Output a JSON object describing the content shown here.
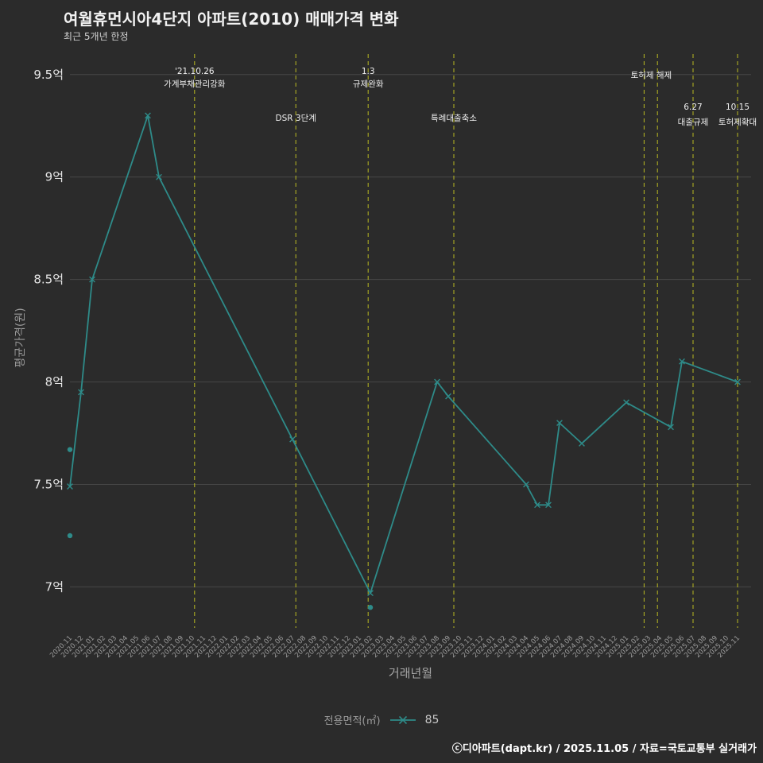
{
  "header": {
    "title": "여월휴먼시아4단지 아파트(2010) 매매가격 변화",
    "subtitle": "최근 5개년 한정"
  },
  "footer": {
    "credit": "ⓒ디아파트(dapt.kr) / 2025.11.05 / 자료=국토교통부 실거래가"
  },
  "legend": {
    "label": "전용면적(㎡)",
    "series_name": "85"
  },
  "colors": {
    "background": "#2b2b2b",
    "series": "#2e8b89",
    "event": "#b9ba22",
    "grid": "#474747",
    "tick_text": "#e6e6e6",
    "muted_text": "#9f9f9f",
    "annotation_text": "#f0f0f0"
  },
  "chart_data": {
    "type": "line",
    "title": "여월휴먼시아4단지 아파트(2010) 매매가격 변화",
    "subtitle": "최근 5개년 한정",
    "xlabel": "거래년월",
    "ylabel": "평균가격(원)",
    "unit": "억",
    "ylim": [
      6.8,
      9.6
    ],
    "grid": "horizontal",
    "legend_position": "bottom",
    "yticks": [
      {
        "value": 9.5,
        "label": "9.5억"
      },
      {
        "value": 9.0,
        "label": "9억"
      },
      {
        "value": 8.5,
        "label": "8.5억"
      },
      {
        "value": 8.0,
        "label": "8억"
      },
      {
        "value": 7.5,
        "label": "7.5억"
      },
      {
        "value": 7.0,
        "label": "7억"
      }
    ],
    "categories": [
      "2020.11",
      "2020.12",
      "2021.01",
      "2021.02",
      "2021.03",
      "2021.04",
      "2021.05",
      "2021.06",
      "2021.07",
      "2021.08",
      "2021.09",
      "2021.10",
      "2021.11",
      "2021.12",
      "2022.01",
      "2022.02",
      "2022.03",
      "2022.04",
      "2022.05",
      "2022.06",
      "2022.07",
      "2022.08",
      "2022.09",
      "2022.10",
      "2022.11",
      "2022.12",
      "2023.01",
      "2023.02",
      "2023.03",
      "2023.04",
      "2023.05",
      "2023.06",
      "2023.07",
      "2023.08",
      "2023.09",
      "2023.10",
      "2023.11",
      "2023.12",
      "2024.01",
      "2024.02",
      "2024.03",
      "2024.04",
      "2024.05",
      "2024.06",
      "2024.07",
      "2024.08",
      "2024.09",
      "2024.10",
      "2024.11",
      "2024.12",
      "2025.01",
      "2025.02",
      "2025.03",
      "2025.04",
      "2025.05",
      "2025.06",
      "2025.07",
      "2025.08",
      "2025.09",
      "2025.10",
      "2025.11"
    ],
    "series": [
      {
        "name": "85",
        "points": [
          {
            "month": "2020.11",
            "value": 7.49
          },
          {
            "month": "2020.12",
            "value": 7.95
          },
          {
            "month": "2021.01",
            "value": 8.5
          },
          {
            "month": "2021.06",
            "value": 9.3
          },
          {
            "month": "2021.07",
            "value": 9.0
          },
          {
            "month": "2022.07",
            "value": 7.72
          },
          {
            "month": "2023.02",
            "value": 6.97
          },
          {
            "month": "2023.08",
            "value": 8.0
          },
          {
            "month": "2023.09",
            "value": 7.93
          },
          {
            "month": "2024.04",
            "value": 7.5
          },
          {
            "month": "2024.05",
            "value": 7.4
          },
          {
            "month": "2024.06",
            "value": 7.4
          },
          {
            "month": "2024.07",
            "value": 7.8
          },
          {
            "month": "2024.09",
            "value": 7.7
          },
          {
            "month": "2025.01",
            "value": 7.9
          },
          {
            "month": "2025.05",
            "value": 7.78
          },
          {
            "month": "2025.06",
            "value": 8.1
          },
          {
            "month": "2025.11",
            "value": 8.0
          }
        ]
      }
    ],
    "scatter_points": [
      {
        "month": "2020.11",
        "value": 7.67
      },
      {
        "month": "2020.11",
        "value": 7.25
      },
      {
        "month": "2023.02",
        "value": 6.9
      }
    ],
    "events": [
      {
        "month_index": 11.2,
        "labels": [
          {
            "text": "'21.10.26",
            "y": 93
          },
          {
            "text": "가계부채관리강화",
            "y": 109
          }
        ]
      },
      {
        "month_index": 20.3,
        "labels": [
          {
            "text": "DSR 3단계",
            "y": 152
          }
        ]
      },
      {
        "month_index": 26.8,
        "labels": [
          {
            "text": "1.3",
            "y": 93
          },
          {
            "text": "규제완화",
            "y": 109
          }
        ]
      },
      {
        "month_index": 34.5,
        "labels": [
          {
            "text": "특례대출축소",
            "y": 152
          }
        ]
      },
      {
        "month_index": 51.6,
        "labels": [
          {
            "text": "토허제 해제",
            "y": 98,
            "dx": 9
          }
        ]
      },
      {
        "month_index": 52.8,
        "labels": []
      },
      {
        "month_index": 56.0,
        "labels": [
          {
            "text": "6.27",
            "y": 138
          },
          {
            "text": "대출규제",
            "y": 157
          }
        ]
      },
      {
        "month_index": 60.0,
        "labels": [
          {
            "text": "10.15",
            "y": 138
          },
          {
            "text": "토허제확대",
            "y": 157
          }
        ]
      }
    ]
  }
}
